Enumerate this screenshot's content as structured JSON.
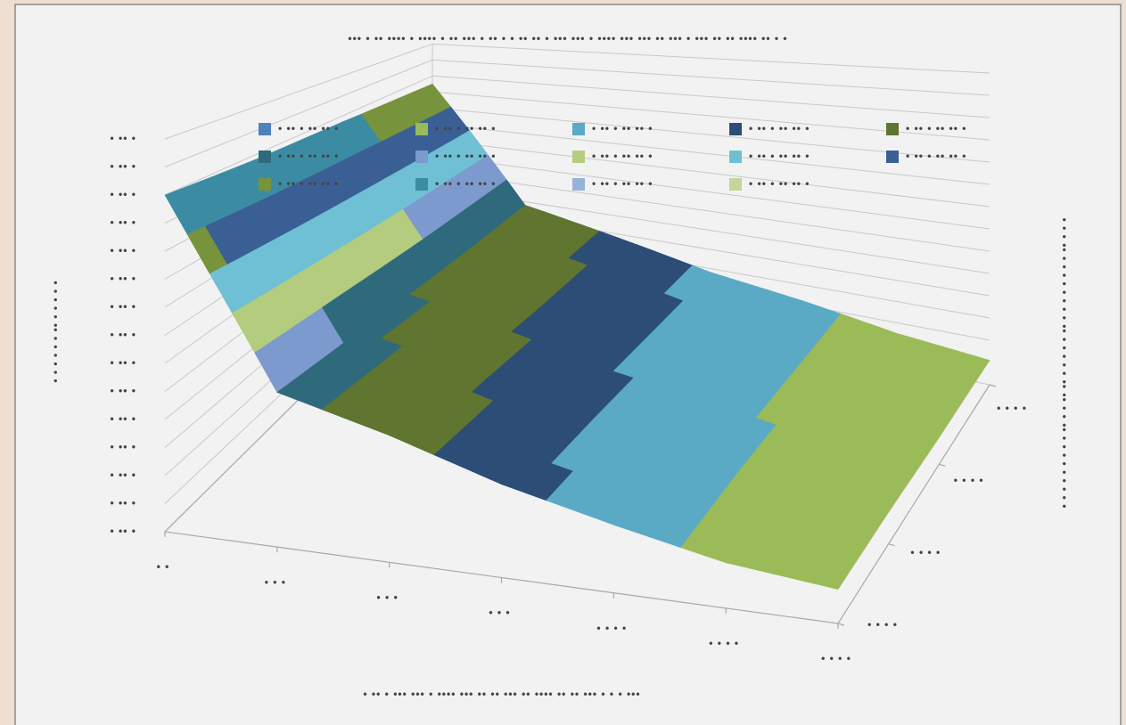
{
  "chart_data": {
    "type": "surface",
    "title": "••• • •• •••• • •••• • •• ••• • •• • • ••  •• • ••• ••• •  •••• ••• ••• •• ••• • ••• •• •• •••• •• • •",
    "x_label": "•  •• • ••• ••• •  •••• ••• ••  •• ••• •• •••• •• •• ••• • • • •••",
    "z_label": "• • • • • • •• • • • • •",
    "depth_label": "• • • •• • • • • • • • • •• • • • • • •• •• • • •• • • • • • • • • •",
    "categories": [
      "• •",
      "• • •",
      "• • •",
      "• • •",
      "• • • •",
      "• • • •",
      "• • • •"
    ],
    "series": [
      {
        "name": "• • • •",
        "values": [
          120,
          55,
          45,
          33,
          24,
          16,
          12
        ]
      },
      {
        "name": "• • • •",
        "values": [
          118,
          53,
          43,
          32,
          24,
          17,
          12
        ]
      },
      {
        "name": "• • • •",
        "values": [
          117,
          50,
          40,
          30,
          23,
          16,
          11
        ]
      },
      {
        "name": "• • • •",
        "values": [
          115,
          48,
          38,
          28,
          22,
          15,
          11
        ]
      }
    ],
    "zlim": [
      0,
      140
    ],
    "zticks": [
      {
        "value": 0,
        "label": "• •• •"
      },
      {
        "value": 10,
        "label": "• •• •"
      },
      {
        "value": 20,
        "label": "• •• •"
      },
      {
        "value": 30,
        "label": "• •• •"
      },
      {
        "value": 40,
        "label": "• •• •"
      },
      {
        "value": 50,
        "label": "• •• •"
      },
      {
        "value": 60,
        "label": "• •• •"
      },
      {
        "value": 70,
        "label": "• •• •"
      },
      {
        "value": 80,
        "label": "• •• •"
      },
      {
        "value": 90,
        "label": "• •• •"
      },
      {
        "value": 100,
        "label": "• •• •"
      },
      {
        "value": 110,
        "label": "• •• •"
      },
      {
        "value": 120,
        "label": "• •• •"
      },
      {
        "value": 130,
        "label": "• •• •"
      },
      {
        "value": 140,
        "label": "• •• •"
      }
    ],
    "bands": [
      {
        "name": "• •• • •• •• •",
        "color": "#4f81bd"
      },
      {
        "name": "• •• • •• •• •",
        "color": "#9bbb59"
      },
      {
        "name": "• •• • •• •• •",
        "color": "#5aaac6"
      },
      {
        "name": "• •• • •• •• •",
        "color": "#2c4d75"
      },
      {
        "name": "• •• • •• •• •",
        "color": "#5f7530"
      },
      {
        "name": "• •• • •• •• •",
        "color": "#2f6a7c"
      },
      {
        "name": "• •• • •• •• •",
        "color": "#7c9acd"
      },
      {
        "name": "• •• • •• •• •",
        "color": "#b3cc7e"
      },
      {
        "name": "• •• • •• •• •",
        "color": "#6fc0d5"
      },
      {
        "name": "• •• • •• •• •",
        "color": "#3a5f94"
      },
      {
        "name": "• •• • •• •• •",
        "color": "#77933c"
      },
      {
        "name": "• •• • •• •• •",
        "color": "#3b8ca3"
      },
      {
        "name": "• •• • •• •• •",
        "color": "#95b3d7"
      },
      {
        "name": "• •• • •• •• •",
        "color": "#c3d69b"
      }
    ]
  }
}
